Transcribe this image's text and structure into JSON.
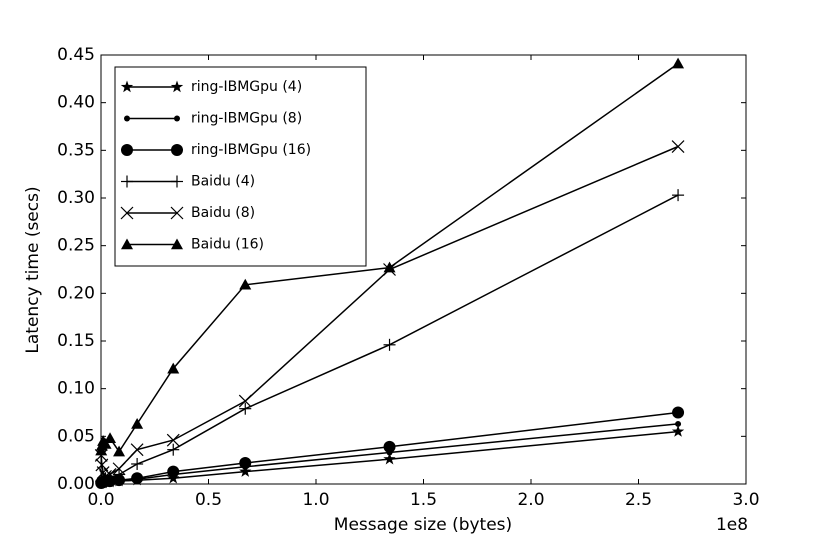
{
  "chart_data": {
    "type": "line",
    "xlabel": "Message size (bytes)",
    "ylabel": "Latency time (secs)",
    "x_offset_label": "1e8",
    "x": [
      0.001,
      0.004,
      0.01,
      0.021,
      0.042,
      0.084,
      0.168,
      0.336,
      0.671,
      1.342,
      2.684
    ],
    "series": [
      {
        "name": "ring-IBMGpu (4)",
        "color": "#000000",
        "marker": "star",
        "values": [
          0.001,
          0.001,
          0.001,
          0.002,
          0.002,
          0.003,
          0.004,
          0.006,
          0.013,
          0.026,
          0.055
        ]
      },
      {
        "name": "ring-IBMGpu (8)",
        "color": "#000000",
        "marker": "dot",
        "values": [
          0.001,
          0.001,
          0.002,
          0.002,
          0.003,
          0.004,
          0.005,
          0.01,
          0.018,
          0.033,
          0.063
        ]
      },
      {
        "name": "ring-IBMGpu (16)",
        "color": "#000000",
        "marker": "circle",
        "values": [
          0.001,
          0.002,
          0.002,
          0.003,
          0.003,
          0.004,
          0.006,
          0.013,
          0.022,
          0.039,
          0.075
        ]
      },
      {
        "name": "Baidu (4)",
        "color": "#000000",
        "marker": "plus",
        "values": [
          0.003,
          0.004,
          0.005,
          0.006,
          0.007,
          0.01,
          0.021,
          0.036,
          0.079,
          0.146,
          0.303
        ]
      },
      {
        "name": "Baidu (8)",
        "color": "#000000",
        "marker": "x",
        "values": [
          0.03,
          0.02,
          0.012,
          0.008,
          0.01,
          0.016,
          0.036,
          0.046,
          0.087,
          0.225,
          0.354
        ]
      },
      {
        "name": "Baidu (16)",
        "color": "#000000",
        "marker": "triangle",
        "values": [
          0.035,
          0.04,
          0.045,
          0.042,
          0.048,
          0.034,
          0.063,
          0.121,
          0.209,
          0.227,
          0.441
        ]
      }
    ],
    "xlim": [
      0,
      3.0
    ],
    "ylim": [
      0,
      0.45
    ],
    "xticks": [
      {
        "value": 0,
        "label": "0.0"
      },
      {
        "value": 0.5,
        "label": "0.5"
      },
      {
        "value": 1,
        "label": "1.0"
      },
      {
        "value": 1.5,
        "label": "1.5"
      },
      {
        "value": 2,
        "label": "2.0"
      },
      {
        "value": 2.5,
        "label": "2.5"
      },
      {
        "value": 3,
        "label": "3.0"
      }
    ],
    "yticks": [
      {
        "value": 0,
        "label": "0.00"
      },
      {
        "value": 0.05,
        "label": "0.05"
      },
      {
        "value": 0.1,
        "label": "0.10"
      },
      {
        "value": 0.15,
        "label": "0.15"
      },
      {
        "value": 0.2,
        "label": "0.20"
      },
      {
        "value": 0.25,
        "label": "0.25"
      },
      {
        "value": 0.3,
        "label": "0.30"
      },
      {
        "value": 0.35,
        "label": "0.35"
      },
      {
        "value": 0.4,
        "label": "0.40"
      },
      {
        "value": 0.45,
        "label": "0.45"
      }
    ],
    "grid": false,
    "legend_position": "upper-left"
  }
}
